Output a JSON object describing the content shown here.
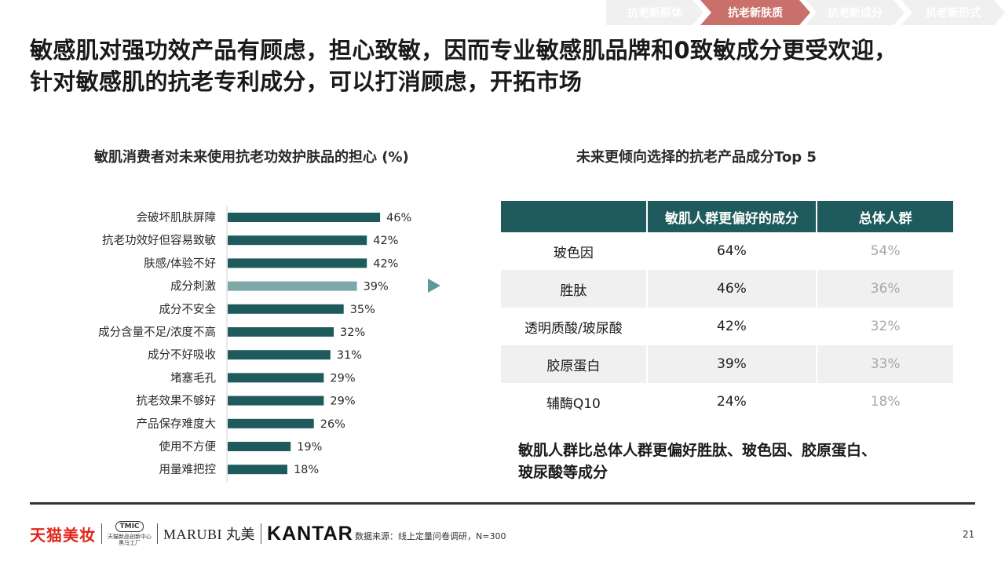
{
  "nav": {
    "items": [
      {
        "label": "抗老新群体",
        "active": false
      },
      {
        "label": "抗老新肤质",
        "active": true
      },
      {
        "label": "抗老新成分",
        "active": false
      },
      {
        "label": "抗老新形式",
        "active": false
      }
    ]
  },
  "headline": {
    "line1": "敏感肌对强功效产品有顾虑，担心致敏，因而专业敏感肌品牌和0致敏成分更受欢迎，",
    "line2": "针对敏感肌的抗老专利成分，可以打消顾虑，开拓市场"
  },
  "left_panel": {
    "title": "敏肌消费者对未来使用抗老功效护肤品的担心 (%)"
  },
  "right_panel": {
    "title": "未来更倾向选择的抗老产品成分Top 5"
  },
  "chart_data": {
    "type": "bar",
    "orientation": "horizontal",
    "title": "敏肌消费者对未来使用抗老功效护肤品的担心 (%)",
    "categories": [
      "会破坏肌肤屏障",
      "抗老功效好但容易致敏",
      "肤感/体验不好",
      "成分刺激",
      "成分不安全",
      "成分含量不足/浓度不高",
      "成分不好吸收",
      "堵塞毛孔",
      "抗老效果不够好",
      "产品保存难度大",
      "使用不方便",
      "用量难把控"
    ],
    "values": [
      46,
      42,
      42,
      39,
      35,
      32,
      31,
      29,
      29,
      26,
      19,
      18
    ],
    "value_labels": [
      "46%",
      "42%",
      "42%",
      "39%",
      "35%",
      "32%",
      "31%",
      "29%",
      "29%",
      "26%",
      "19%",
      "18%"
    ],
    "highlight_index": 3,
    "bar_color": "#1f5b5c",
    "highlight_color": "#7fa8a8",
    "xlim": [
      0,
      50
    ],
    "grid": false,
    "legend": "none"
  },
  "table": {
    "headers": [
      "",
      "敏肌人群更偏好的成分",
      "总体人群"
    ],
    "rows": [
      {
        "name": "玻色因",
        "sensitive": "64%",
        "overall": "54%"
      },
      {
        "name": "胜肽",
        "sensitive": "46%",
        "overall": "36%"
      },
      {
        "name": "透明质酸/玻尿酸",
        "sensitive": "42%",
        "overall": "32%"
      },
      {
        "name": "胶原蛋白",
        "sensitive": "39%",
        "overall": "33%"
      },
      {
        "name": "辅酶Q10",
        "sensitive": "24%",
        "overall": "18%"
      }
    ]
  },
  "insight": {
    "line1": "敏肌人群比总体人群更偏好胜肽、玻色因、胶原蛋白、",
    "line2": "玻尿酸等成分"
  },
  "footer": {
    "logo_tmall": "天猫美妆",
    "logo_tmic_badge": "TMIC",
    "logo_tmic_line1": "天猫新品创新中心",
    "logo_tmic_line2": "黑马工厂",
    "logo_marubi": "MARUBI 丸美",
    "logo_kantar": "KANTAR",
    "source": "数据来源：线上定量问卷调研，N=300",
    "page": "21"
  },
  "colors": {
    "teal": "#1f5b5c",
    "teal_light": "#7fa8a8",
    "nav_active": "#c9706a",
    "nav_inactive": "#f0f0f0",
    "tmall_red": "#e0261b"
  }
}
